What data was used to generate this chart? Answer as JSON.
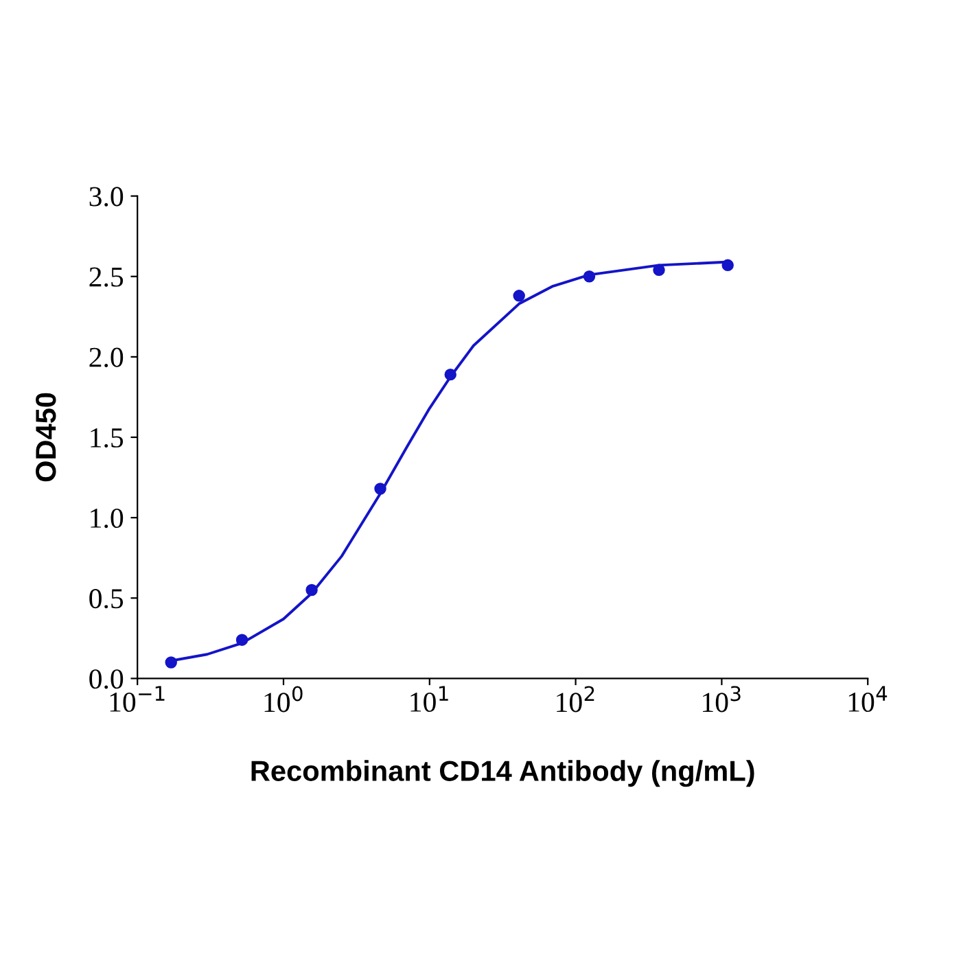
{
  "chart_data": {
    "type": "scatter",
    "xlabel": "Recombinant CD14 Antibody (ng/mL)",
    "ylabel": "OD450",
    "log": "x",
    "xlim": [
      0.1,
      10000
    ],
    "xticks": [
      {
        "value": 0.1,
        "label": "10$^{−1}$"
      },
      {
        "value": 1,
        "label": "10$^{0}$"
      },
      {
        "value": 10,
        "label": "10$^{1}$"
      },
      {
        "value": 100,
        "label": "10$^{2}$"
      },
      {
        "value": 1000,
        "label": "10$^{3}$"
      },
      {
        "value": 10000,
        "label": "10$^{4}$"
      }
    ],
    "ylim": [
      0,
      3
    ],
    "yticks": [
      {
        "value": 0,
        "label": "0.0"
      },
      {
        "value": 0.5,
        "label": "0.5"
      },
      {
        "value": 1,
        "label": "1.0"
      },
      {
        "value": 1.5,
        "label": "1.5"
      },
      {
        "value": 2,
        "label": "2.0"
      },
      {
        "value": 2.5,
        "label": "2.5"
      },
      {
        "value": 3,
        "label": "3.0"
      }
    ],
    "grid": false,
    "marker": "circle",
    "series": [
      {
        "color": "#1414c8",
        "x": [
          0.17,
          0.52,
          1.56,
          4.6,
          13.9,
          41,
          124,
          372,
          1100
        ],
        "values": [
          0.1,
          0.24,
          0.55,
          1.18,
          1.89,
          2.38,
          2.5,
          2.54,
          2.57
        ]
      },
      {
        "type": "line",
        "color": "#1414c8",
        "marker": "none",
        "x": [
          0.17,
          0.3,
          0.52,
          1,
          1.56,
          2.5,
          4.6,
          7,
          10,
          14,
          20,
          41,
          70,
          124,
          372,
          1100
        ],
        "values": [
          0.11,
          0.15,
          0.22,
          0.37,
          0.53,
          0.76,
          1.15,
          1.44,
          1.68,
          1.88,
          2.07,
          2.33,
          2.44,
          2.51,
          2.57,
          2.59
        ]
      }
    ]
  }
}
